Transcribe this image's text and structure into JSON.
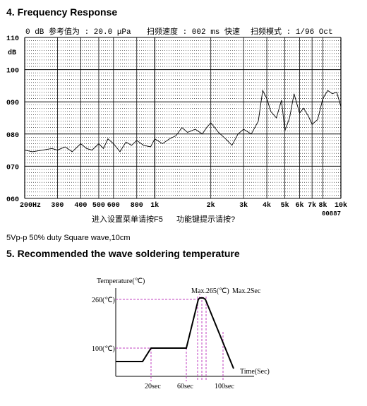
{
  "section4": {
    "title": "4. Frequency Response"
  },
  "freq": {
    "header": {
      "ref": "0 dB 参考值为 : 20.0 μPa",
      "speed": "扫频速度 : 002 ms 快速",
      "mode": "扫频模式 : 1/96  Oct"
    },
    "y_top_label": "110",
    "y_unit": "dB",
    "y_ticks": [
      "100",
      "090",
      "080",
      "070",
      "060"
    ],
    "x_labels": [
      "200Hz",
      "300",
      "400",
      "500",
      "600",
      "800",
      "1k",
      "2k",
      "3k",
      "4k",
      "5k",
      "6k",
      "7k",
      "8k",
      "10k"
    ],
    "extra": "00887",
    "footer_left": "进入设置菜单请按F5",
    "footer_right": "功能键提示请按?"
  },
  "note": "5Vp-p 50% duty Square wave,10cm",
  "section5": {
    "title": "5. Recommended the wave soldering temperature"
  },
  "temp": {
    "ylabel": "Temperature(℃)",
    "y260": "260(℃)",
    "y100": "100(℃)",
    "max_temp": "Max.265(℃)",
    "max_time": "Max.2Sec",
    "xlabel": "Time(Sec)",
    "t20": "20sec",
    "t60": "60sec",
    "t100": "100sec"
  },
  "chart_data": [
    {
      "type": "line",
      "x_scale": "log",
      "xlabel": "",
      "ylabel": "dB",
      "ylim": [
        60,
        110
      ],
      "xlim": [
        200,
        10000
      ],
      "grid": true,
      "x": [
        200,
        220,
        250,
        280,
        300,
        330,
        360,
        400,
        430,
        460,
        500,
        530,
        560,
        600,
        650,
        700,
        750,
        800,
        870,
        950,
        1000,
        1100,
        1200,
        1300,
        1400,
        1500,
        1650,
        1800,
        1900,
        2000,
        2200,
        2400,
        2600,
        2800,
        3000,
        3300,
        3600,
        3800,
        4000,
        4200,
        4500,
        4800,
        5000,
        5300,
        5600,
        6000,
        6300,
        6700,
        7000,
        7500,
        8000,
        8500,
        9000,
        9500,
        10000
      ],
      "y": [
        75,
        74.5,
        75,
        75.5,
        75,
        76,
        74.5,
        77,
        75.5,
        75,
        77,
        75.5,
        78.5,
        77,
        74.5,
        77.5,
        76.5,
        78,
        76.5,
        76,
        78.5,
        77,
        78.5,
        79.5,
        82,
        80.5,
        81.5,
        80,
        82,
        83.5,
        80.5,
        78.5,
        76.5,
        80,
        81.5,
        80,
        84,
        93.5,
        91,
        87,
        85,
        90.5,
        81,
        85,
        92.5,
        86.5,
        88,
        85.5,
        83,
        84.5,
        91,
        93.5,
        92.5,
        93,
        88.5
      ]
    },
    {
      "type": "line",
      "xlabel": "Time(Sec)",
      "ylabel": "Temperature(℃)",
      "grid": false,
      "x": [
        0,
        20,
        25,
        60,
        70,
        72,
        76,
        100
      ],
      "y": [
        20,
        20,
        100,
        100,
        260,
        265,
        260,
        0
      ]
    }
  ]
}
